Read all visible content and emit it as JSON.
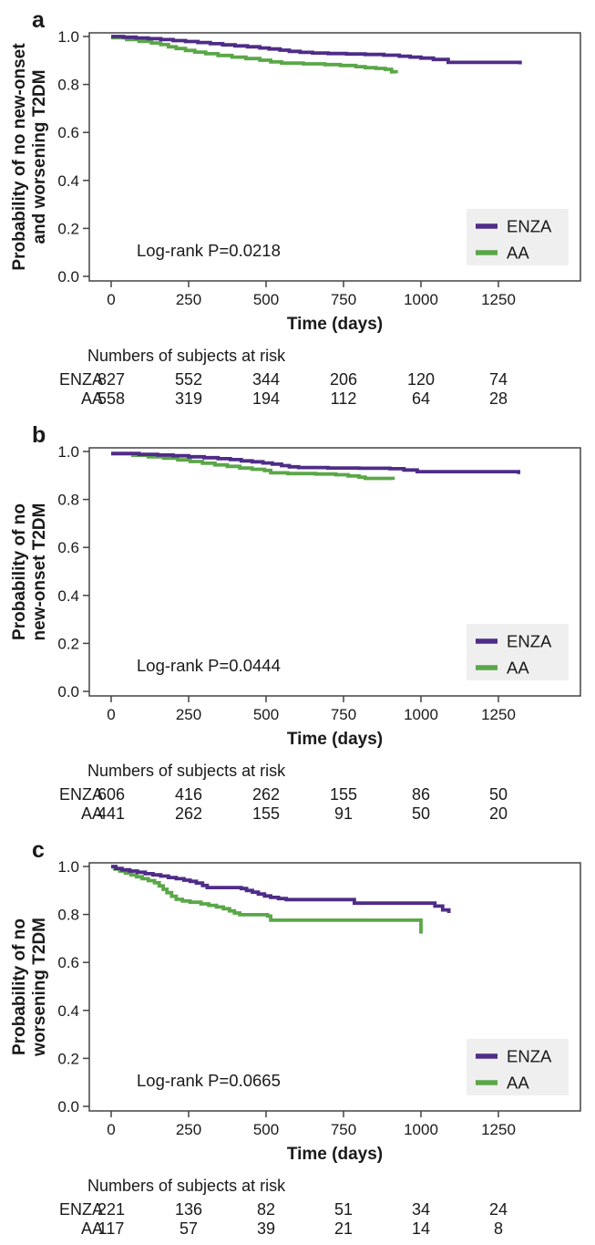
{
  "colors": {
    "enza_curve": "#4e2c87",
    "aa_curve": "#5aa748",
    "enza_text": "#4a3a9c",
    "aa_text": "#4ea546",
    "axis_dark": "#434343",
    "axis_light": "#9b9b9b",
    "legend_bg": "#efefef",
    "text": "#1a1a1a"
  },
  "chart_data": [
    {
      "type": "line",
      "subtype": "kaplan-meier-step",
      "panel_label": "a",
      "ylabel_lines": [
        "Probability of no new-onset",
        "and worsening T2DM"
      ],
      "xlabel": "Time (days)",
      "annotation": "Log-rank P=0.0218",
      "xticks": [
        0,
        250,
        500,
        750,
        1000,
        1250
      ],
      "yticks": [
        "0.0",
        "0.2",
        "0.4",
        "0.6",
        "0.8",
        "1.0"
      ],
      "xlim": [
        -70,
        1515
      ],
      "ylim": [
        -0.02,
        1.015
      ],
      "grid": false,
      "legend_position": "lower right",
      "series": [
        {
          "name": "ENZA",
          "color": "#4e2c87",
          "points": [
            [
              0,
              1.0
            ],
            [
              40,
              0.997
            ],
            [
              80,
              0.994
            ],
            [
              120,
              0.991
            ],
            [
              160,
              0.987
            ],
            [
              200,
              0.983
            ],
            [
              240,
              0.979
            ],
            [
              280,
              0.975
            ],
            [
              320,
              0.97
            ],
            [
              360,
              0.965
            ],
            [
              400,
              0.961
            ],
            [
              440,
              0.957
            ],
            [
              480,
              0.952
            ],
            [
              510,
              0.948
            ],
            [
              545,
              0.943
            ],
            [
              575,
              0.938
            ],
            [
              610,
              0.934
            ],
            [
              650,
              0.931
            ],
            [
              700,
              0.929
            ],
            [
              760,
              0.927
            ],
            [
              820,
              0.925
            ],
            [
              880,
              0.922
            ],
            [
              930,
              0.918
            ],
            [
              965,
              0.914
            ],
            [
              1000,
              0.91
            ],
            [
              1040,
              0.904
            ],
            [
              1088,
              0.892
            ],
            [
              1320,
              0.892
            ],
            [
              1320,
              0.884
            ]
          ]
        },
        {
          "name": "AA",
          "color": "#5aa748",
          "points": [
            [
              0,
              0.995
            ],
            [
              50,
              0.987
            ],
            [
              90,
              0.98
            ],
            [
              130,
              0.973
            ],
            [
              160,
              0.966
            ],
            [
              185,
              0.957
            ],
            [
              210,
              0.95
            ],
            [
              240,
              0.942
            ],
            [
              270,
              0.935
            ],
            [
              305,
              0.928
            ],
            [
              345,
              0.921
            ],
            [
              390,
              0.914
            ],
            [
              435,
              0.908
            ],
            [
              480,
              0.901
            ],
            [
              515,
              0.894
            ],
            [
              550,
              0.889
            ],
            [
              620,
              0.886
            ],
            [
              690,
              0.883
            ],
            [
              740,
              0.879
            ],
            [
              790,
              0.874
            ],
            [
              820,
              0.87
            ],
            [
              855,
              0.867
            ],
            [
              885,
              0.863
            ],
            [
              905,
              0.853
            ],
            [
              920,
              0.853
            ],
            [
              920,
              0.847
            ]
          ]
        }
      ],
      "risk_table": {
        "title": "Numbers of subjects at risk",
        "times": [
          0,
          250,
          500,
          750,
          1000,
          1250
        ],
        "rows": [
          {
            "name": "ENZA",
            "color": "#4a3a9c",
            "values": [
              827,
              552,
              344,
              206,
              120,
              74
            ]
          },
          {
            "name": "AA",
            "color": "#4ea546",
            "values": [
              558,
              319,
              194,
              112,
              64,
              28
            ]
          }
        ]
      }
    },
    {
      "type": "line",
      "subtype": "kaplan-meier-step",
      "panel_label": "b",
      "ylabel_lines": [
        "Probability of no",
        "new-onset T2DM"
      ],
      "xlabel": "Time (days)",
      "annotation": "Log-rank P=0.0444",
      "xticks": [
        0,
        250,
        500,
        750,
        1000,
        1250
      ],
      "yticks": [
        "0.0",
        "0.2",
        "0.4",
        "0.6",
        "0.8",
        "1.0"
      ],
      "xlim": [
        -70,
        1515
      ],
      "ylim": [
        -0.02,
        1.015
      ],
      "grid": false,
      "legend_position": "lower right",
      "series": [
        {
          "name": "ENZA",
          "color": "#4e2c87",
          "points": [
            [
              0,
              0.992
            ],
            [
              90,
              0.988
            ],
            [
              150,
              0.985
            ],
            [
              200,
              0.982
            ],
            [
              250,
              0.978
            ],
            [
              300,
              0.974
            ],
            [
              345,
              0.97
            ],
            [
              385,
              0.966
            ],
            [
              420,
              0.961
            ],
            [
              455,
              0.957
            ],
            [
              490,
              0.952
            ],
            [
              520,
              0.947
            ],
            [
              550,
              0.941
            ],
            [
              575,
              0.936
            ],
            [
              605,
              0.933
            ],
            [
              700,
              0.931
            ],
            [
              800,
              0.93
            ],
            [
              900,
              0.928
            ],
            [
              945,
              0.923
            ],
            [
              988,
              0.916
            ],
            [
              1315,
              0.916
            ],
            [
              1315,
              0.906
            ]
          ]
        },
        {
          "name": "AA",
          "color": "#5aa748",
          "points": [
            [
              0,
              0.99
            ],
            [
              70,
              0.984
            ],
            [
              120,
              0.978
            ],
            [
              170,
              0.972
            ],
            [
              215,
              0.965
            ],
            [
              255,
              0.958
            ],
            [
              295,
              0.951
            ],
            [
              335,
              0.944
            ],
            [
              375,
              0.938
            ],
            [
              415,
              0.931
            ],
            [
              455,
              0.926
            ],
            [
              495,
              0.921
            ],
            [
              515,
              0.911
            ],
            [
              570,
              0.908
            ],
            [
              660,
              0.906
            ],
            [
              725,
              0.903
            ],
            [
              765,
              0.898
            ],
            [
              800,
              0.893
            ],
            [
              820,
              0.888
            ],
            [
              910,
              0.888
            ],
            [
              910,
              0.882
            ]
          ]
        }
      ],
      "risk_table": {
        "title": "Numbers of subjects at risk",
        "times": [
          0,
          250,
          500,
          750,
          1000,
          1250
        ],
        "rows": [
          {
            "name": "ENZA",
            "color": "#4a3a9c",
            "values": [
              606,
              416,
              262,
              155,
              86,
              50
            ]
          },
          {
            "name": "AA",
            "color": "#4ea546",
            "values": [
              441,
              262,
              155,
              91,
              50,
              20
            ]
          }
        ]
      }
    },
    {
      "type": "line",
      "subtype": "kaplan-meier-step",
      "panel_label": "c",
      "ylabel_lines": [
        "Probability of no",
        "worsening T2DM"
      ],
      "xlabel": "Time (days)",
      "annotation": "Log-rank P=0.0665",
      "xticks": [
        0,
        250,
        500,
        750,
        1000,
        1250
      ],
      "yticks": [
        "0.0",
        "0.2",
        "0.4",
        "0.6",
        "0.8",
        "1.0"
      ],
      "xlim": [
        -70,
        1515
      ],
      "ylim": [
        -0.02,
        1.015
      ],
      "grid": false,
      "legend_position": "lower right",
      "series": [
        {
          "name": "ENZA",
          "color": "#4e2c87",
          "points": [
            [
              0,
              1.0
            ],
            [
              15,
              0.992
            ],
            [
              35,
              0.986
            ],
            [
              60,
              0.981
            ],
            [
              85,
              0.976
            ],
            [
              110,
              0.97
            ],
            [
              135,
              0.965
            ],
            [
              160,
              0.96
            ],
            [
              185,
              0.954
            ],
            [
              210,
              0.949
            ],
            [
              235,
              0.943
            ],
            [
              255,
              0.938
            ],
            [
              275,
              0.931
            ],
            [
              295,
              0.921
            ],
            [
              310,
              0.912
            ],
            [
              420,
              0.908
            ],
            [
              437,
              0.9
            ],
            [
              456,
              0.893
            ],
            [
              475,
              0.885
            ],
            [
              495,
              0.877
            ],
            [
              515,
              0.871
            ],
            [
              540,
              0.866
            ],
            [
              565,
              0.862
            ],
            [
              785,
              0.847
            ],
            [
              1045,
              0.835
            ],
            [
              1070,
              0.819
            ],
            [
              1090,
              0.819
            ],
            [
              1090,
              0.806
            ]
          ]
        },
        {
          "name": "AA",
          "color": "#5aa748",
          "points": [
            [
              0,
              0.998
            ],
            [
              12,
              0.989
            ],
            [
              28,
              0.981
            ],
            [
              46,
              0.973
            ],
            [
              64,
              0.965
            ],
            [
              82,
              0.957
            ],
            [
              100,
              0.949
            ],
            [
              120,
              0.941
            ],
            [
              140,
              0.932
            ],
            [
              155,
              0.919
            ],
            [
              168,
              0.905
            ],
            [
              180,
              0.891
            ],
            [
              195,
              0.876
            ],
            [
              210,
              0.863
            ],
            [
              230,
              0.856
            ],
            [
              255,
              0.851
            ],
            [
              290,
              0.844
            ],
            [
              315,
              0.838
            ],
            [
              340,
              0.831
            ],
            [
              362,
              0.824
            ],
            [
              382,
              0.815
            ],
            [
              398,
              0.806
            ],
            [
              415,
              0.799
            ],
            [
              505,
              0.793
            ],
            [
              515,
              0.776
            ],
            [
              1000,
              0.776
            ],
            [
              1000,
              0.72
            ]
          ]
        }
      ],
      "risk_table": {
        "title": "Numbers of subjects at risk",
        "times": [
          0,
          250,
          500,
          750,
          1000,
          1250
        ],
        "rows": [
          {
            "name": "ENZA",
            "color": "#4a3a9c",
            "values": [
              221,
              136,
              82,
              51,
              34,
              24
            ]
          },
          {
            "name": "AA",
            "color": "#4ea546",
            "values": [
              117,
              57,
              39,
              21,
              14,
              8
            ]
          }
        ]
      }
    }
  ]
}
